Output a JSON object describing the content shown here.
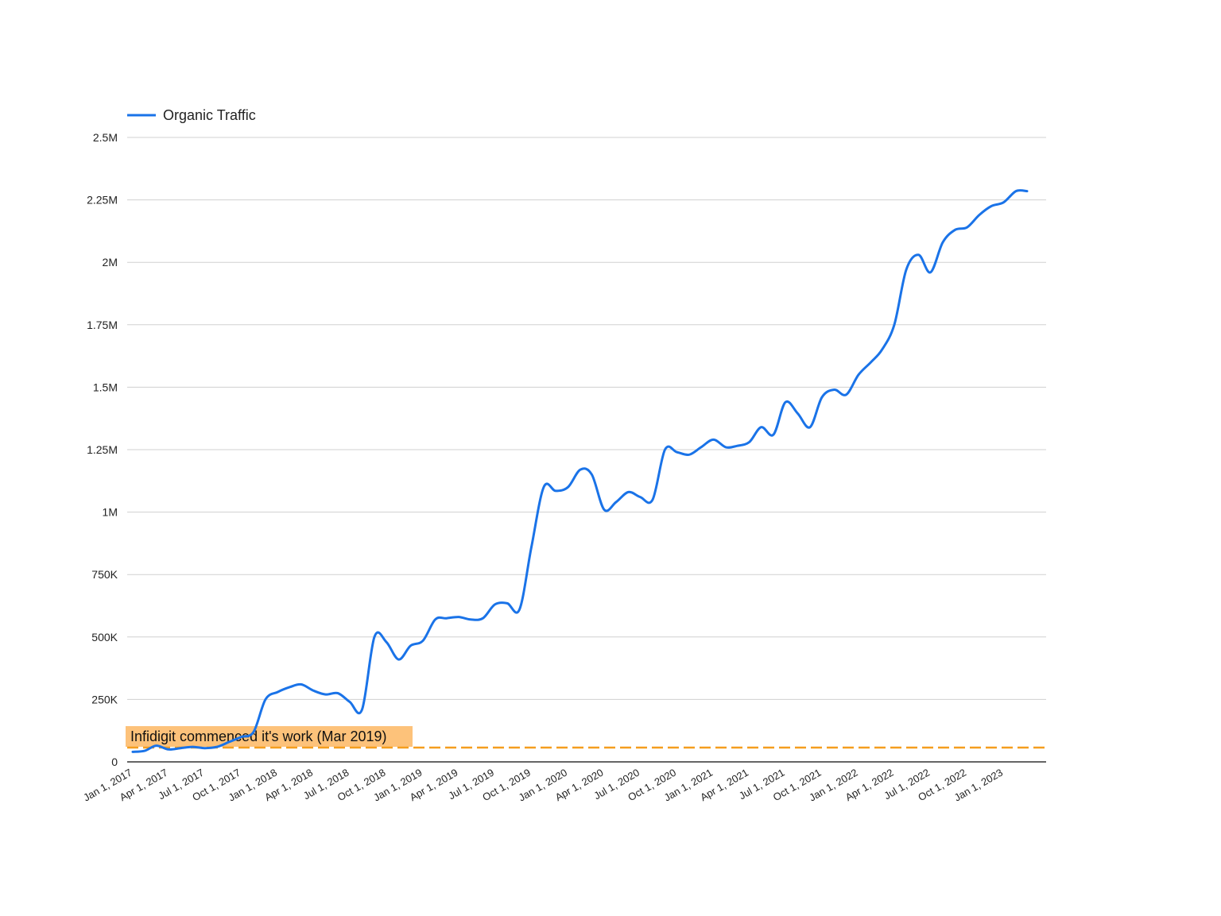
{
  "chart_data": {
    "type": "line",
    "title": "",
    "xlabel": "",
    "ylabel": "",
    "legend": {
      "position": "top-left",
      "entries": [
        "Organic Traffic"
      ]
    },
    "grid": true,
    "ylim": [
      0,
      2500000
    ],
    "y_ticks": [
      0,
      250000,
      500000,
      750000,
      1000000,
      1250000,
      1500000,
      1750000,
      2000000,
      2250000,
      2500000
    ],
    "y_tick_labels": [
      "0",
      "250K",
      "500K",
      "750K",
      "1M",
      "1.25M",
      "1.5M",
      "1.75M",
      "2M",
      "2.25M",
      "2.5M"
    ],
    "x_ticks": [
      "2017-01-01",
      "2017-04-01",
      "2017-07-01",
      "2017-10-01",
      "2018-01-01",
      "2018-04-01",
      "2018-07-01",
      "2018-10-01",
      "2019-01-01",
      "2019-04-01",
      "2019-07-01",
      "2019-10-01",
      "2020-01-01",
      "2020-04-01",
      "2020-07-01",
      "2020-10-01",
      "2021-01-01",
      "2021-04-01",
      "2021-07-01",
      "2021-10-01",
      "2022-01-01",
      "2022-04-01",
      "2022-07-01",
      "2022-10-01",
      "2023-01-01"
    ],
    "x_tick_labels": [
      "Jan 1, 2017",
      "Apr 1, 2017",
      "Jul 1, 2017",
      "Oct 1, 2017",
      "Jan 1, 2018",
      "Apr 1, 2018",
      "Jul 1, 2018",
      "Oct 1, 2018",
      "Jan 1, 2019",
      "Apr 1, 2019",
      "Jul 1, 2019",
      "Oct 1, 2019",
      "Jan 1, 2020",
      "Apr 1, 2020",
      "Jul 1, 2020",
      "Oct 1, 2020",
      "Jan 1, 2021",
      "Apr 1, 2021",
      "Jul 1, 2021",
      "Oct 1, 2021",
      "Jan 1, 2022",
      "Apr 1, 2022",
      "Jul 1, 2022",
      "Oct 1, 2022",
      "Jan 1, 2023"
    ],
    "series": [
      {
        "name": "Organic Traffic",
        "color": "#1a73e8",
        "x": [
          "2017-01-01",
          "2017-02-01",
          "2017-03-01",
          "2017-04-01",
          "2017-05-01",
          "2017-06-01",
          "2017-07-01",
          "2017-08-01",
          "2017-09-01",
          "2017-10-01",
          "2017-11-01",
          "2017-12-01",
          "2018-01-01",
          "2018-02-01",
          "2018-03-01",
          "2018-04-01",
          "2018-05-01",
          "2018-06-01",
          "2018-07-01",
          "2018-08-01",
          "2018-09-01",
          "2018-10-01",
          "2018-11-01",
          "2018-12-01",
          "2019-01-01",
          "2019-02-01",
          "2019-03-01",
          "2019-04-01",
          "2019-05-01",
          "2019-06-01",
          "2019-07-01",
          "2019-08-01",
          "2019-09-01",
          "2019-10-01",
          "2019-11-01",
          "2019-12-01",
          "2020-01-01",
          "2020-02-01",
          "2020-03-01",
          "2020-04-01",
          "2020-05-01",
          "2020-06-01",
          "2020-07-01",
          "2020-08-01",
          "2020-09-01",
          "2020-10-01",
          "2020-11-01",
          "2020-12-01",
          "2021-01-01",
          "2021-02-01",
          "2021-03-01",
          "2021-04-01",
          "2021-05-01",
          "2021-06-01",
          "2021-07-01",
          "2021-08-01",
          "2021-09-01",
          "2021-10-01",
          "2021-11-01",
          "2021-12-01",
          "2022-01-01",
          "2022-02-01",
          "2022-03-01",
          "2022-04-01",
          "2022-05-01",
          "2022-06-01",
          "2022-07-01",
          "2022-08-01",
          "2022-09-01",
          "2022-10-01",
          "2022-11-01",
          "2022-12-01",
          "2023-01-01",
          "2023-02-01",
          "2023-03-01"
        ],
        "y": [
          40000,
          45000,
          65000,
          50000,
          55000,
          60000,
          55000,
          60000,
          80000,
          100000,
          120000,
          250000,
          280000,
          300000,
          310000,
          285000,
          270000,
          275000,
          240000,
          210000,
          500000,
          480000,
          410000,
          465000,
          485000,
          570000,
          575000,
          580000,
          570000,
          575000,
          630000,
          635000,
          610000,
          860000,
          1100000,
          1085000,
          1100000,
          1170000,
          1150000,
          1010000,
          1040000,
          1080000,
          1060000,
          1050000,
          1250000,
          1240000,
          1230000,
          1260000,
          1290000,
          1260000,
          1265000,
          1280000,
          1340000,
          1310000,
          1440000,
          1395000,
          1340000,
          1460000,
          1490000,
          1470000,
          1550000,
          1600000,
          1650000,
          1750000,
          1970000,
          2030000,
          1960000,
          2080000,
          2130000,
          2140000,
          2190000,
          2225000,
          2240000,
          2285000,
          2285000
        ]
      }
    ],
    "annotation": {
      "text": "Infidigit commenced it's work (Mar 2019)",
      "value": 60000,
      "color": "#f59e1f"
    }
  }
}
